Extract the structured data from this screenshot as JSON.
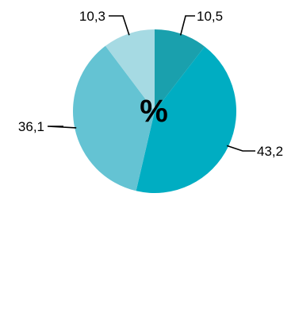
{
  "chart_data": {
    "type": "pie",
    "center_label": "%",
    "start": "12 o'clock",
    "direction": "clockwise",
    "legend": "none",
    "slices": [
      {
        "value": 10.5,
        "label": "10,5",
        "color": "#1aa0ad"
      },
      {
        "value": 43.2,
        "label": "43,2",
        "color": "#00adc2"
      },
      {
        "value": 36.1,
        "label": "36,1",
        "color": "#64c3d3"
      },
      {
        "value": 10.3,
        "label": "10,3",
        "color": "#a6dae3"
      }
    ]
  }
}
